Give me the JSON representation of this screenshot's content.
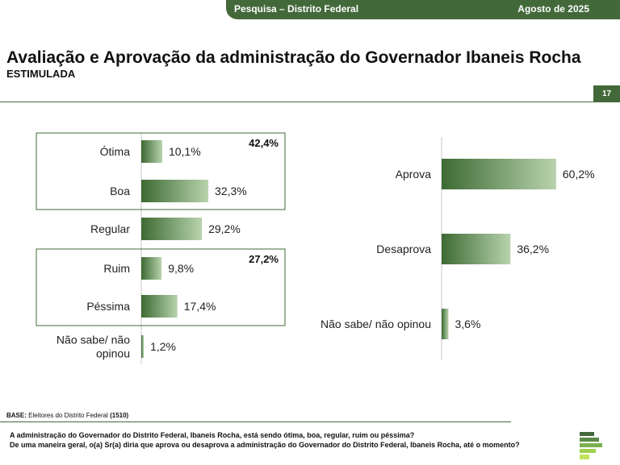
{
  "header": {
    "survey": "Pesquisa – Distrito Federal",
    "date": "Agosto de 2025",
    "page_number": "17"
  },
  "title": "Avaliação e Aprovação da administração do Governador Ibaneis Rocha",
  "subtitle": "ESTIMULADA",
  "footer": {
    "base_label": "BASE:",
    "base_text": "Eleitores do Distrito Federal",
    "base_count": "(1510)",
    "question_1": "A administração do Governador do Distrito Federal, Ibaneis Rocha, está sendo ótima, boa, regular, ruim ou péssima?",
    "question_2": "De uma maneira geral, o(a) Sr(a) diria que aprova ou desaprova a administração do Governador do Distrito Federal, Ibaneis Rocha, até o momento?"
  },
  "colors": {
    "bar_dark": "#3d6a33",
    "bar_light": "#b8d3ad",
    "accent": "#43693a"
  },
  "chart_data": [
    {
      "type": "bar",
      "orientation": "horizontal",
      "title": "",
      "categories": [
        "Ótima",
        "Boa",
        "Regular",
        "Ruim",
        "Péssima",
        "Não sabe/ não opinou"
      ],
      "category_lines": [
        [
          "Ótima"
        ],
        [
          "Boa"
        ],
        [
          "Regular"
        ],
        [
          "Ruim"
        ],
        [
          "Péssima"
        ],
        [
          "Não sabe/ não",
          "opinou"
        ]
      ],
      "values": [
        10.1,
        32.3,
        29.2,
        9.8,
        17.4,
        1.2
      ],
      "labels": [
        "10,1%",
        "32,3%",
        "29,2%",
        "9,8%",
        "17,4%",
        "1,2%"
      ],
      "groups": [
        {
          "members": [
            "Ótima",
            "Boa"
          ],
          "total": 42.4,
          "label": "42,4%"
        },
        {
          "members": [
            "Ruim",
            "Péssima"
          ],
          "total": 27.2,
          "label": "27,2%"
        }
      ],
      "xlim": [
        0,
        70
      ]
    },
    {
      "type": "bar",
      "orientation": "horizontal",
      "title": "",
      "categories": [
        "Aprova",
        "Desaprova",
        "Não sabe/ não opinou"
      ],
      "values": [
        60.2,
        36.2,
        3.6
      ],
      "labels": [
        "60,2%",
        "36,2%",
        "3,6%"
      ],
      "xlim": [
        0,
        70
      ]
    }
  ]
}
